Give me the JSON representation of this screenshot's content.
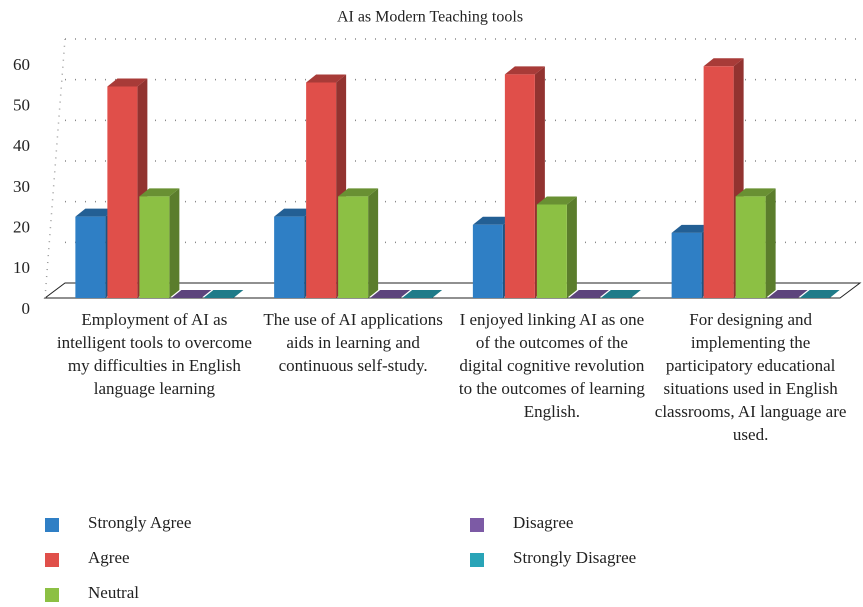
{
  "chart_data": {
    "type": "bar3d",
    "title": "AI as Modern Teaching tools",
    "categories": [
      "Employment of AI as intelligent tools to overcome my difficulties in English language learning",
      "The use of AI applications aids in learning and continuous self-study.",
      "I enjoyed linking AI as one of the outcomes of the digital cognitive revolution to the outcomes of learning English.",
      "For designing and implementing the participatory educational situations used in English classrooms, AI language are used."
    ],
    "series": [
      {
        "name": "Strongly Agree",
        "color": "#2f7fc5",
        "values": [
          20,
          20,
          18,
          16
        ]
      },
      {
        "name": "Agree",
        "color": "#e04f4a",
        "values": [
          52,
          53,
          55,
          57
        ]
      },
      {
        "name": "Neutral",
        "color": "#8cc044",
        "values": [
          25,
          25,
          23,
          25
        ]
      },
      {
        "name": "Disagree",
        "color": "#7c5aa5",
        "values": [
          0,
          0,
          0,
          0
        ]
      },
      {
        "name": "Strongly Disagree",
        "color": "#29a4b7",
        "values": [
          0,
          0,
          0,
          0
        ]
      }
    ],
    "ylim": [
      0,
      60
    ],
    "yticks": [
      0,
      10,
      20,
      30,
      40,
      50,
      60
    ],
    "grid": true,
    "legend": "bottom"
  }
}
